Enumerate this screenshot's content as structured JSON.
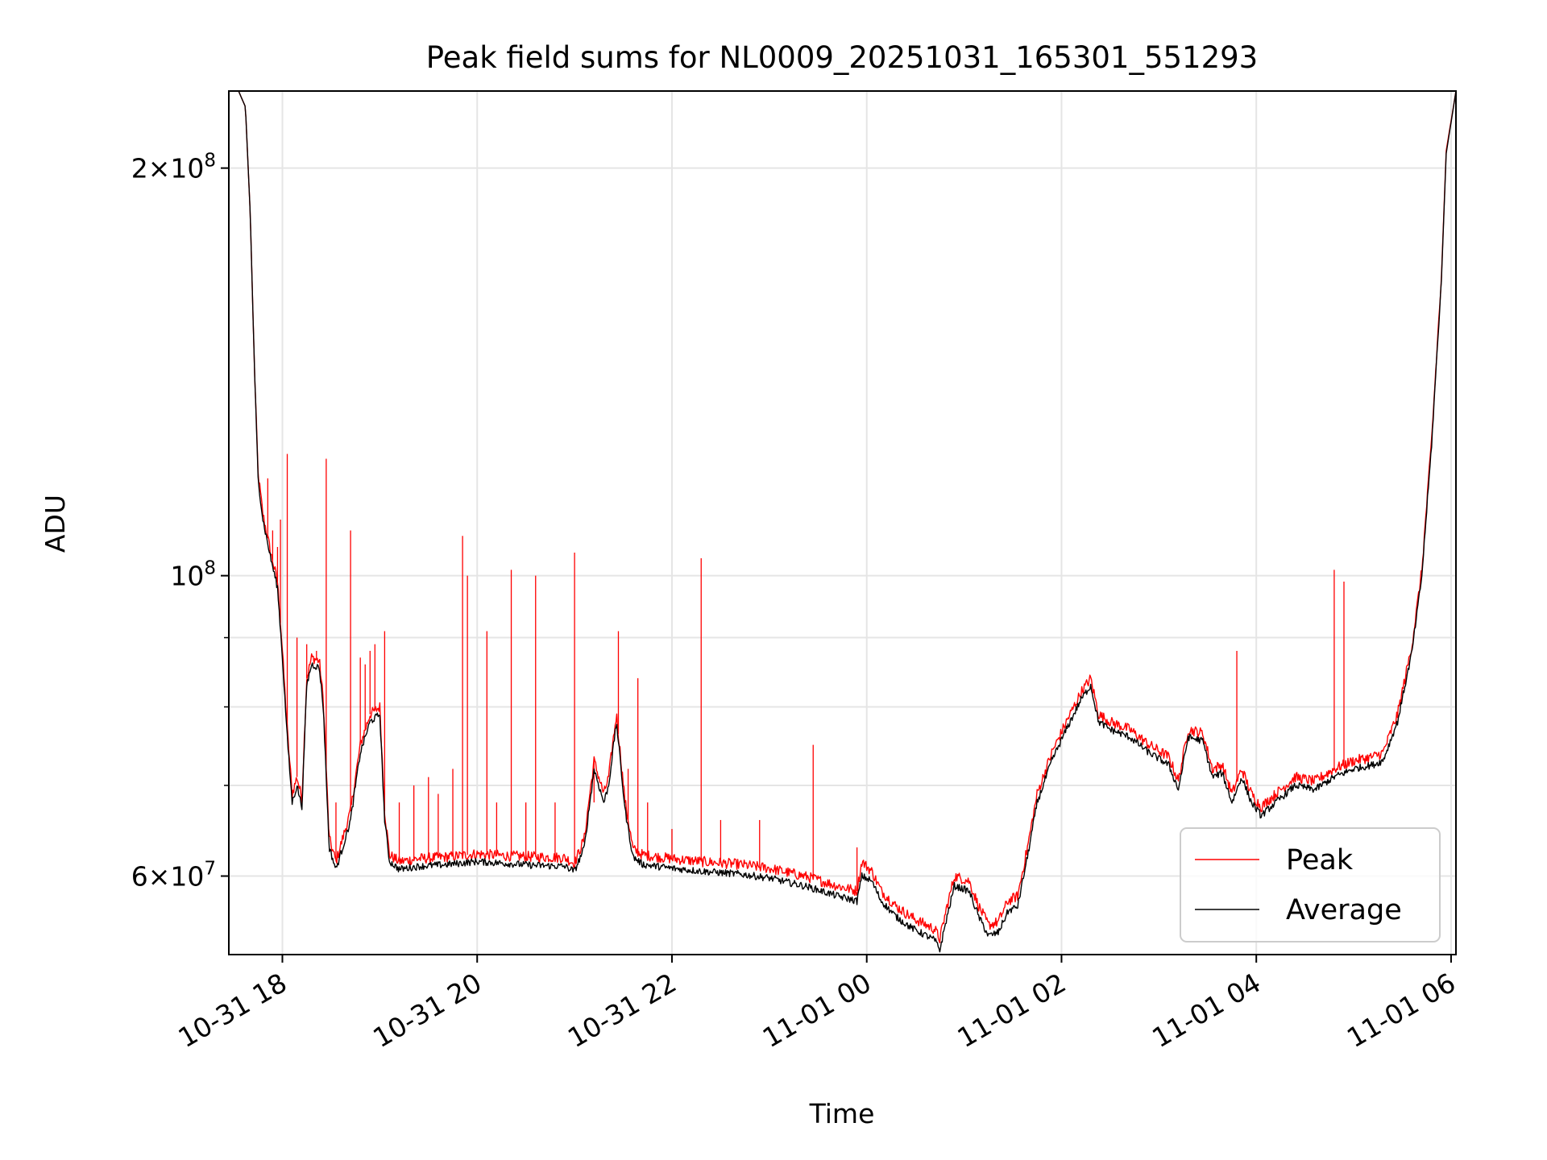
{
  "chart_data": {
    "type": "line",
    "title": "Peak field sums for NL0009_20251031_165301_551293",
    "xlabel": "Time",
    "ylabel": "ADU",
    "yscale": "log",
    "ylim": [
      52500000,
      228000000
    ],
    "xlim": [
      -0.55,
      12.05
    ],
    "grid": true,
    "legend_position": "lower-right",
    "x_ticks": [
      {
        "value": 0,
        "label": "10-31 18"
      },
      {
        "value": 2,
        "label": "10-31 20"
      },
      {
        "value": 4,
        "label": "10-31 22"
      },
      {
        "value": 6,
        "label": "11-01 00"
      },
      {
        "value": 8,
        "label": "11-01 02"
      },
      {
        "value": 10,
        "label": "11-01 04"
      },
      {
        "value": 12,
        "label": "11-01 06"
      }
    ],
    "y_major_ticks": [
      {
        "value": 60000000,
        "mantissa": "6",
        "base": "10",
        "exp": "7"
      },
      {
        "value": 100000000,
        "mantissa": "",
        "base": "10",
        "exp": "8"
      },
      {
        "value": 200000000,
        "mantissa": "2",
        "base": "10",
        "exp": "8"
      }
    ],
    "y_minor_ticks": [
      70000000,
      80000000,
      90000000
    ],
    "x_units": "hours since 10-31 18:00",
    "series": [
      {
        "name": "Average",
        "color": "#000000",
        "points": [
          [
            -0.45,
            228000000
          ],
          [
            -0.38,
            222000000
          ],
          [
            -0.33,
            185000000
          ],
          [
            -0.29,
            145000000
          ],
          [
            -0.25,
            118000000
          ],
          [
            -0.2,
            110000000
          ],
          [
            -0.12,
            103000000
          ],
          [
            -0.05,
            98000000
          ],
          [
            0.0,
            87000000
          ],
          [
            0.05,
            76000000
          ],
          [
            0.1,
            68000000
          ],
          [
            0.15,
            70000000
          ],
          [
            0.2,
            67500000
          ],
          [
            0.25,
            83000000
          ],
          [
            0.3,
            86000000
          ],
          [
            0.38,
            85500000
          ],
          [
            0.42,
            80000000
          ],
          [
            0.48,
            63000000
          ],
          [
            0.55,
            60700000
          ],
          [
            0.62,
            63000000
          ],
          [
            0.7,
            66000000
          ],
          [
            0.8,
            74000000
          ],
          [
            0.9,
            78000000
          ],
          [
            1.0,
            79000000
          ],
          [
            1.05,
            66000000
          ],
          [
            1.1,
            61500000
          ],
          [
            1.2,
            60700000
          ],
          [
            1.4,
            61000000
          ],
          [
            1.7,
            61200000
          ],
          [
            2.0,
            61500000
          ],
          [
            2.3,
            61300000
          ],
          [
            2.6,
            61100000
          ],
          [
            2.9,
            61000000
          ],
          [
            3.0,
            60500000
          ],
          [
            3.1,
            63000000
          ],
          [
            3.2,
            72000000
          ],
          [
            3.3,
            68000000
          ],
          [
            3.35,
            70000000
          ],
          [
            3.43,
            78000000
          ],
          [
            3.52,
            67000000
          ],
          [
            3.6,
            62000000
          ],
          [
            3.7,
            61200000
          ],
          [
            4.0,
            60800000
          ],
          [
            4.3,
            60500000
          ],
          [
            4.7,
            60200000
          ],
          [
            5.0,
            59800000
          ],
          [
            5.4,
            58900000
          ],
          [
            5.7,
            58000000
          ],
          [
            5.9,
            57500000
          ],
          [
            5.95,
            60000000
          ],
          [
            6.05,
            59500000
          ],
          [
            6.15,
            57500000
          ],
          [
            6.3,
            56000000
          ],
          [
            6.45,
            55000000
          ],
          [
            6.55,
            54500000
          ],
          [
            6.7,
            53800000
          ],
          [
            6.75,
            52900000
          ],
          [
            6.82,
            55800000
          ],
          [
            6.9,
            59000000
          ],
          [
            7.05,
            58500000
          ],
          [
            7.15,
            56000000
          ],
          [
            7.25,
            54200000
          ],
          [
            7.35,
            54500000
          ],
          [
            7.45,
            56500000
          ],
          [
            7.55,
            57000000
          ],
          [
            7.65,
            62000000
          ],
          [
            7.75,
            68000000
          ],
          [
            7.9,
            73000000
          ],
          [
            8.05,
            77000000
          ],
          [
            8.2,
            81000000
          ],
          [
            8.3,
            83000000
          ],
          [
            8.38,
            78000000
          ],
          [
            8.5,
            77000000
          ],
          [
            8.7,
            76000000
          ],
          [
            8.9,
            74000000
          ],
          [
            9.1,
            72500000
          ],
          [
            9.2,
            69500000
          ],
          [
            9.3,
            76000000
          ],
          [
            9.45,
            75500000
          ],
          [
            9.55,
            71000000
          ],
          [
            9.65,
            71500000
          ],
          [
            9.75,
            68000000
          ],
          [
            9.85,
            71000000
          ],
          [
            9.95,
            68000000
          ],
          [
            10.05,
            66500000
          ],
          [
            10.2,
            68000000
          ],
          [
            10.4,
            70000000
          ],
          [
            10.6,
            69500000
          ],
          [
            10.8,
            71000000
          ],
          [
            11.0,
            72000000
          ],
          [
            11.2,
            72500000
          ],
          [
            11.3,
            73000000
          ],
          [
            11.45,
            78000000
          ],
          [
            11.6,
            88000000
          ],
          [
            11.7,
            100000000
          ],
          [
            11.8,
            125000000
          ],
          [
            11.9,
            165000000
          ],
          [
            11.95,
            205000000
          ],
          [
            12.05,
            228000000
          ]
        ]
      },
      {
        "name": "Peak",
        "color": "#ff0000",
        "points": [
          [
            -0.45,
            228000000
          ],
          [
            -0.38,
            222000000
          ],
          [
            -0.33,
            185000000
          ],
          [
            -0.29,
            145000000
          ],
          [
            -0.25,
            119000000
          ],
          [
            -0.2,
            111000000
          ],
          [
            -0.12,
            104000000
          ],
          [
            -0.05,
            99000000
          ],
          [
            0.0,
            88000000
          ],
          [
            0.05,
            77000000
          ],
          [
            0.1,
            69000000
          ],
          [
            0.15,
            71000000
          ],
          [
            0.2,
            68500000
          ],
          [
            0.25,
            84000000
          ],
          [
            0.3,
            87000000
          ],
          [
            0.38,
            86500000
          ],
          [
            0.42,
            81000000
          ],
          [
            0.48,
            64000000
          ],
          [
            0.55,
            61500000
          ],
          [
            0.62,
            64000000
          ],
          [
            0.7,
            67000000
          ],
          [
            0.8,
            75000000
          ],
          [
            0.9,
            79000000
          ],
          [
            1.0,
            80000000
          ],
          [
            1.05,
            67000000
          ],
          [
            1.1,
            62200000
          ],
          [
            1.2,
            61500000
          ],
          [
            1.4,
            61800000
          ],
          [
            1.7,
            62000000
          ],
          [
            2.0,
            62300000
          ],
          [
            2.3,
            62100000
          ],
          [
            2.6,
            62000000
          ],
          [
            2.9,
            61900000
          ],
          [
            3.0,
            61300000
          ],
          [
            3.1,
            64000000
          ],
          [
            3.2,
            73000000
          ],
          [
            3.3,
            69000000
          ],
          [
            3.35,
            71000000
          ],
          [
            3.43,
            79000000
          ],
          [
            3.52,
            68000000
          ],
          [
            3.6,
            62800000
          ],
          [
            3.7,
            62200000
          ],
          [
            4.0,
            61800000
          ],
          [
            4.3,
            61500000
          ],
          [
            4.7,
            61200000
          ],
          [
            5.0,
            60800000
          ],
          [
            5.4,
            59900000
          ],
          [
            5.7,
            59000000
          ],
          [
            5.9,
            58500000
          ],
          [
            5.95,
            61500000
          ],
          [
            6.05,
            60500000
          ],
          [
            6.15,
            58500000
          ],
          [
            6.3,
            57000000
          ],
          [
            6.45,
            56000000
          ],
          [
            6.55,
            55500000
          ],
          [
            6.7,
            54800000
          ],
          [
            6.75,
            53900000
          ],
          [
            6.82,
            56800000
          ],
          [
            6.9,
            60000000
          ],
          [
            7.05,
            59500000
          ],
          [
            7.15,
            57000000
          ],
          [
            7.25,
            55200000
          ],
          [
            7.35,
            55500000
          ],
          [
            7.45,
            57500000
          ],
          [
            7.55,
            58000000
          ],
          [
            7.65,
            63000000
          ],
          [
            7.75,
            69000000
          ],
          [
            7.9,
            74000000
          ],
          [
            8.05,
            78000000
          ],
          [
            8.2,
            82000000
          ],
          [
            8.3,
            84000000
          ],
          [
            8.38,
            79000000
          ],
          [
            8.5,
            78000000
          ],
          [
            8.7,
            77000000
          ],
          [
            8.9,
            75000000
          ],
          [
            9.1,
            73500000
          ],
          [
            9.2,
            70500000
          ],
          [
            9.3,
            77000000
          ],
          [
            9.45,
            76500000
          ],
          [
            9.55,
            72000000
          ],
          [
            9.65,
            72500000
          ],
          [
            9.75,
            69000000
          ],
          [
            9.85,
            72000000
          ],
          [
            9.95,
            69000000
          ],
          [
            10.05,
            67500000
          ],
          [
            10.2,
            69000000
          ],
          [
            10.4,
            71000000
          ],
          [
            10.6,
            70500000
          ],
          [
            10.8,
            72000000
          ],
          [
            11.0,
            73000000
          ],
          [
            11.2,
            73500000
          ],
          [
            11.3,
            74000000
          ],
          [
            11.45,
            79000000
          ],
          [
            11.6,
            89000000
          ],
          [
            11.7,
            101000000
          ],
          [
            11.8,
            126000000
          ],
          [
            11.9,
            166000000
          ],
          [
            11.95,
            206000000
          ],
          [
            12.05,
            228000000
          ]
        ],
        "spikes": [
          [
            -0.15,
            118000000
          ],
          [
            -0.1,
            108000000
          ],
          [
            -0.05,
            105000000
          ],
          [
            -0.02,
            110000000
          ],
          [
            0.05,
            123000000
          ],
          [
            0.15,
            90000000
          ],
          [
            0.25,
            89000000
          ],
          [
            0.35,
            88000000
          ],
          [
            0.45,
            122000000
          ],
          [
            0.55,
            68000000
          ],
          [
            0.7,
            108000000
          ],
          [
            0.8,
            87000000
          ],
          [
            0.85,
            86000000
          ],
          [
            0.9,
            88000000
          ],
          [
            0.95,
            89000000
          ],
          [
            1.05,
            91000000
          ],
          [
            1.2,
            68000000
          ],
          [
            1.35,
            70000000
          ],
          [
            1.5,
            71000000
          ],
          [
            1.6,
            69000000
          ],
          [
            1.75,
            72000000
          ],
          [
            1.85,
            107000000
          ],
          [
            1.9,
            100000000
          ],
          [
            2.1,
            91000000
          ],
          [
            2.2,
            68000000
          ],
          [
            2.35,
            101000000
          ],
          [
            2.5,
            68000000
          ],
          [
            2.6,
            100000000
          ],
          [
            2.8,
            68000000
          ],
          [
            3.0,
            104000000
          ],
          [
            3.2,
            68000000
          ],
          [
            3.45,
            91000000
          ],
          [
            3.55,
            72000000
          ],
          [
            3.65,
            84000000
          ],
          [
            3.75,
            68000000
          ],
          [
            4.0,
            65000000
          ],
          [
            4.3,
            103000000
          ],
          [
            4.5,
            66000000
          ],
          [
            4.9,
            66000000
          ],
          [
            5.45,
            75000000
          ],
          [
            5.9,
            63000000
          ],
          [
            9.8,
            88000000
          ],
          [
            10.8,
            101000000
          ],
          [
            10.9,
            99000000
          ]
        ]
      }
    ]
  }
}
